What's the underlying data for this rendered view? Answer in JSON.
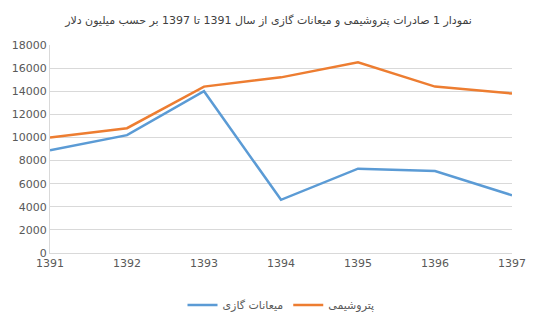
{
  "chart_data": {
    "type": "line",
    "title": "نمودار 1 صادرات پتروشیمی و میعانات گازی از سال 1391 تا 1397 بر حسب میلیون دلار",
    "x": [
      1391,
      1392,
      1393,
      1394,
      1395,
      1396,
      1397
    ],
    "series": [
      {
        "name": "میعانات گازی",
        "color": "#5b9bd5",
        "values": [
          8900,
          10200,
          14000,
          4600,
          7300,
          7100,
          5000
        ]
      },
      {
        "name": "پتروشیمی",
        "color": "#ed7d31",
        "values": [
          10000,
          10800,
          14400,
          15200,
          16500,
          14400,
          13800
        ]
      }
    ],
    "xlim": [
      1391,
      1397
    ],
    "xticks": [
      1391,
      1392,
      1393,
      1394,
      1395,
      1396,
      1397
    ],
    "ylim": [
      0,
      18000
    ],
    "yticks": [
      0,
      2000,
      4000,
      6000,
      8000,
      10000,
      12000,
      14000,
      16000,
      18000
    ],
    "grid": true,
    "legend": "bottom"
  }
}
